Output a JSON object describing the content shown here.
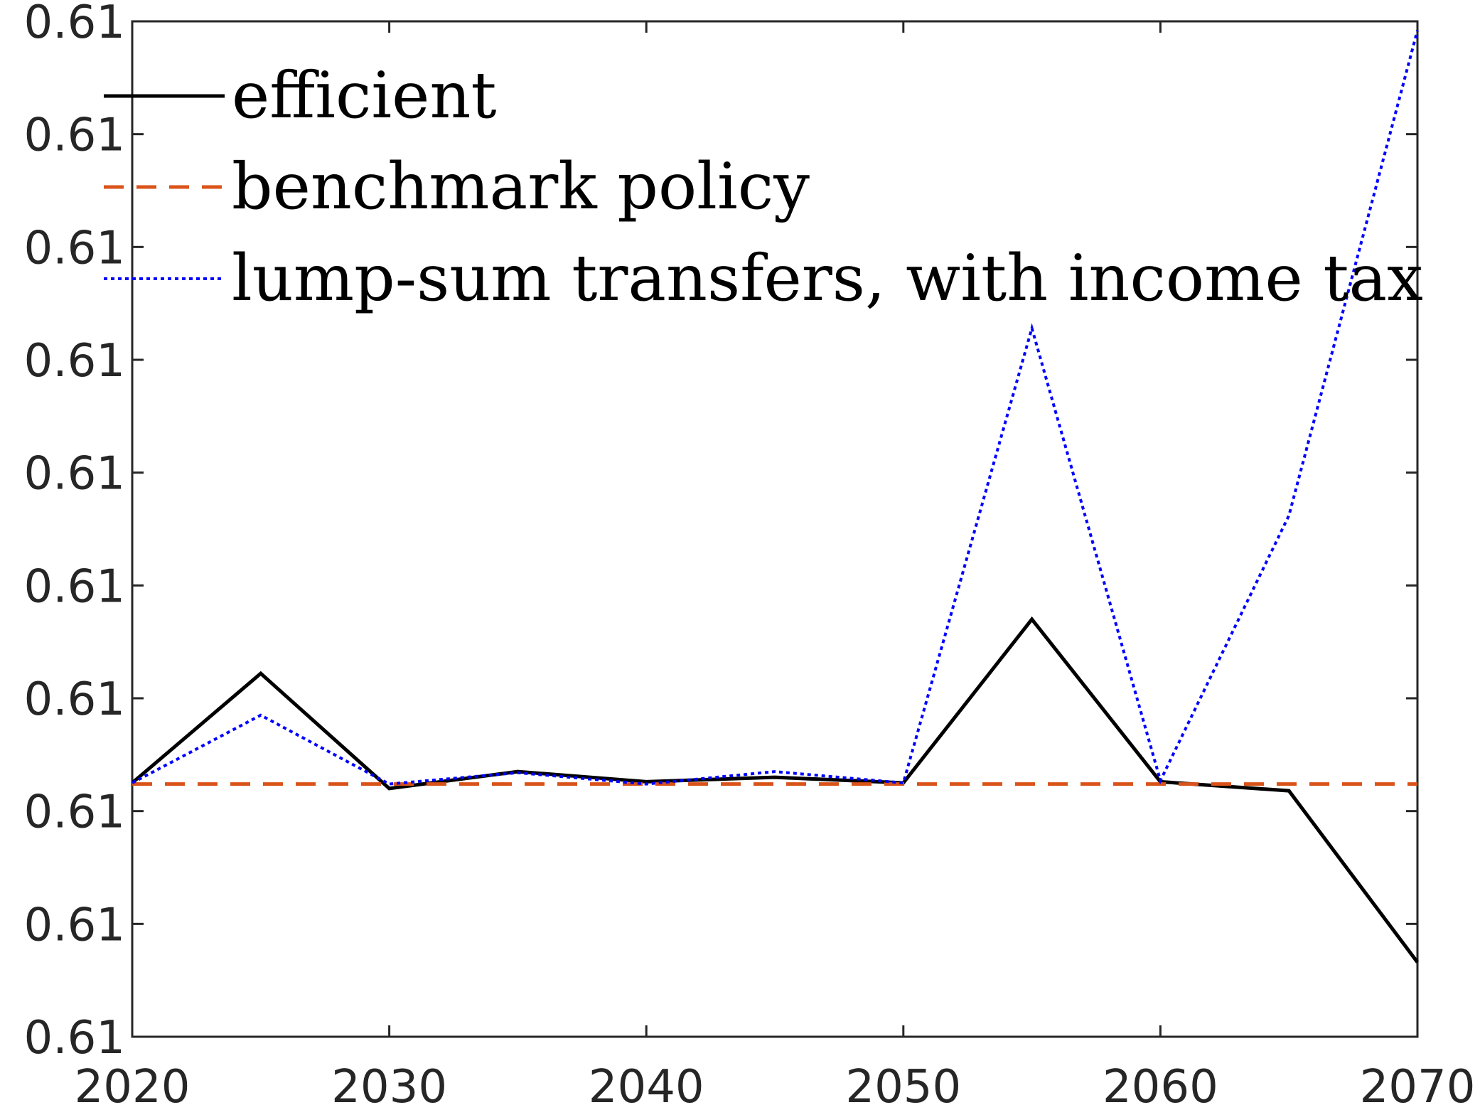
{
  "chart_data": {
    "type": "line",
    "title": "",
    "xlabel": "",
    "ylabel": "",
    "x": [
      2020,
      2025,
      2030,
      2035,
      2040,
      2045,
      2050,
      2055,
      2060,
      2065,
      2070
    ],
    "xlim": [
      2020,
      2070
    ],
    "ylim": [
      0,
      9
    ],
    "x_ticks": [
      {
        "value": 2020,
        "label": "2020"
      },
      {
        "value": 2030,
        "label": "2030"
      },
      {
        "value": 2040,
        "label": "2040"
      },
      {
        "value": 2050,
        "label": "2050"
      },
      {
        "value": 2060,
        "label": "2060"
      },
      {
        "value": 2070,
        "label": "2070"
      }
    ],
    "y_ticks": [
      {
        "value": 0,
        "label": "0.61"
      },
      {
        "value": 1,
        "label": "0.61"
      },
      {
        "value": 2,
        "label": "0.61"
      },
      {
        "value": 3,
        "label": "0.61"
      },
      {
        "value": 4,
        "label": "0.61"
      },
      {
        "value": 5,
        "label": "0.61"
      },
      {
        "value": 6,
        "label": "0.61"
      },
      {
        "value": 7,
        "label": "0.61"
      },
      {
        "value": 8,
        "label": "0.61"
      },
      {
        "value": 9,
        "label": "0.61"
      }
    ],
    "y_note": "y tick labels are all printed as 0.61 (values differ beyond shown precision); series values are given on the tick index scale 0-9",
    "grid": false,
    "legend_position": "top-left",
    "series": [
      {
        "name": "efficient",
        "color": "#000000",
        "style": "solid",
        "values": [
          2.25,
          3.22,
          2.2,
          2.35,
          2.26,
          2.3,
          2.25,
          3.7,
          2.26,
          2.18,
          0.66
        ]
      },
      {
        "name": "benchmark policy",
        "color": "#D95319",
        "style": "dashed",
        "values": [
          2.24,
          2.24,
          2.24,
          2.24,
          2.24,
          2.24,
          2.24,
          2.24,
          2.24,
          2.24,
          2.24
        ]
      },
      {
        "name": "lump-sum transfers, with income tax",
        "color": "#0000FF",
        "style": "dotted",
        "values": [
          2.25,
          2.85,
          2.24,
          2.34,
          2.24,
          2.35,
          2.25,
          6.28,
          2.27,
          4.62,
          8.92
        ]
      }
    ]
  }
}
